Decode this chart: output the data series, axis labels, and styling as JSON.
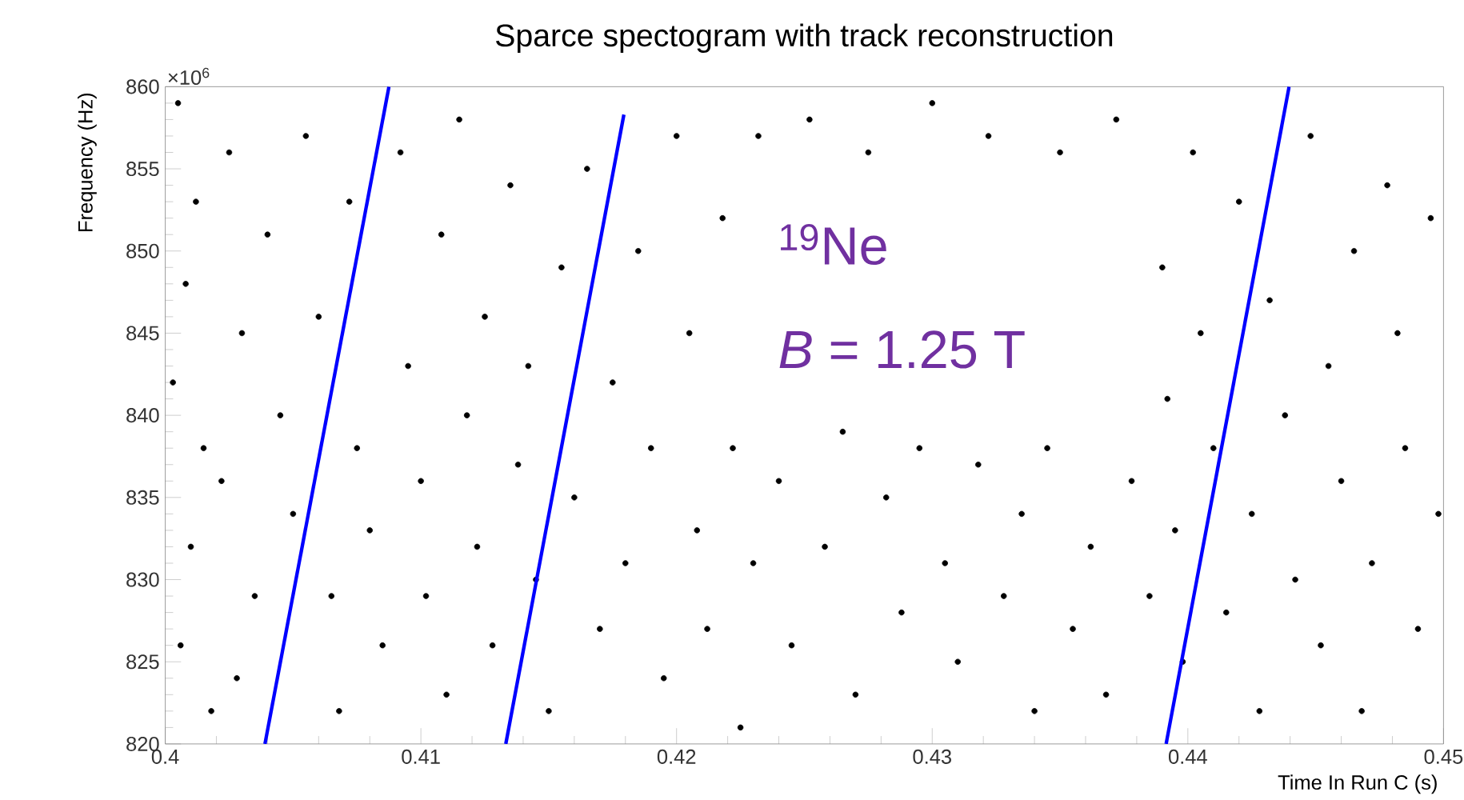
{
  "chart_data": {
    "type": "scatter",
    "title": "Sparce spectogram with track reconstruction",
    "xlabel": "Time In Run C (s)",
    "ylabel": "Frequency (Hz)",
    "xlim": [
      0.4,
      0.45
    ],
    "ylim": [
      820,
      860
    ],
    "xticks": [
      0.4,
      0.41,
      0.42,
      0.43,
      0.44,
      0.45
    ],
    "yticks": [
      820,
      825,
      830,
      835,
      840,
      845,
      850,
      855,
      860
    ],
    "marker": "circle",
    "grid": false,
    "annotations": [
      "×10$^{6}$",
      "$^{19}$Ne",
      "*B* = 1.25 T"
    ],
    "series": [
      {
        "color": "#000000",
        "x": [
          0.4005,
          0.4012,
          0.4008,
          0.4003,
          0.4015,
          0.401,
          0.4006,
          0.4018,
          0.4025,
          0.403,
          0.4022,
          0.4035,
          0.4028,
          0.404,
          0.4045,
          0.405,
          0.4055,
          0.406,
          0.4065,
          0.4068,
          0.4072,
          0.4075,
          0.408,
          0.4085,
          0.4092,
          0.4095,
          0.41,
          0.4102,
          0.4108,
          0.411,
          0.4115,
          0.4118,
          0.4122,
          0.4125,
          0.4128,
          0.4135,
          0.4138,
          0.4142,
          0.4145,
          0.415,
          0.4155,
          0.416,
          0.4165,
          0.417,
          0.4175,
          0.418,
          0.4185,
          0.419,
          0.4195,
          0.42,
          0.4205,
          0.4208,
          0.4212,
          0.4218,
          0.4222,
          0.4225,
          0.423,
          0.4232,
          0.424,
          0.4245,
          0.4252,
          0.4258,
          0.4265,
          0.427,
          0.4275,
          0.4282,
          0.4288,
          0.4295,
          0.43,
          0.4305,
          0.431,
          0.4318,
          0.4322,
          0.4328,
          0.4335,
          0.434,
          0.4345,
          0.435,
          0.4355,
          0.4362,
          0.4368,
          0.4372,
          0.4378,
          0.4385,
          0.439,
          0.4392,
          0.4395,
          0.4398,
          0.4402,
          0.4405,
          0.441,
          0.4415,
          0.442,
          0.4425,
          0.4428,
          0.4432,
          0.4438,
          0.4442,
          0.4448,
          0.4452,
          0.4455,
          0.446,
          0.4465,
          0.4468,
          0.4472,
          0.4478,
          0.4482,
          0.4485,
          0.449,
          0.4495,
          0.4498
        ],
        "values": [
          859,
          853,
          848,
          842,
          838,
          832,
          826,
          822,
          856,
          845,
          836,
          829,
          824,
          851,
          840,
          834,
          857,
          846,
          829,
          822,
          853,
          838,
          833,
          826,
          856,
          843,
          836,
          829,
          851,
          823,
          858,
          840,
          832,
          846,
          826,
          854,
          837,
          843,
          830,
          822,
          849,
          835,
          855,
          827,
          842,
          831,
          850,
          838,
          824,
          857,
          845,
          833,
          827,
          852,
          838,
          821,
          831,
          857,
          836,
          826,
          858,
          832,
          839,
          823,
          856,
          835,
          828,
          838,
          859,
          831,
          825,
          837,
          857,
          829,
          834,
          822,
          838,
          856,
          827,
          832,
          823,
          858,
          836,
          829,
          849,
          841,
          833,
          825,
          856,
          845,
          838,
          828,
          853,
          834,
          822,
          847,
          840,
          830,
          857,
          826,
          843,
          836,
          850,
          822,
          831,
          854,
          845,
          838,
          827,
          852,
          834
        ]
      },
      {
        "type": "line",
        "color": "#0000ff",
        "marker": "none",
        "x": [
          0.4039,
          0.40875
        ],
        "values": [
          820,
          860
        ]
      },
      {
        "type": "line",
        "color": "#0000ff",
        "marker": "none",
        "x": [
          0.41332,
          0.41794
        ],
        "values": [
          820,
          858.3
        ]
      },
      {
        "type": "line",
        "color": "#0000ff",
        "marker": "none",
        "x": [
          0.43915,
          0.44396
        ],
        "values": [
          820,
          860
        ]
      }
    ]
  }
}
